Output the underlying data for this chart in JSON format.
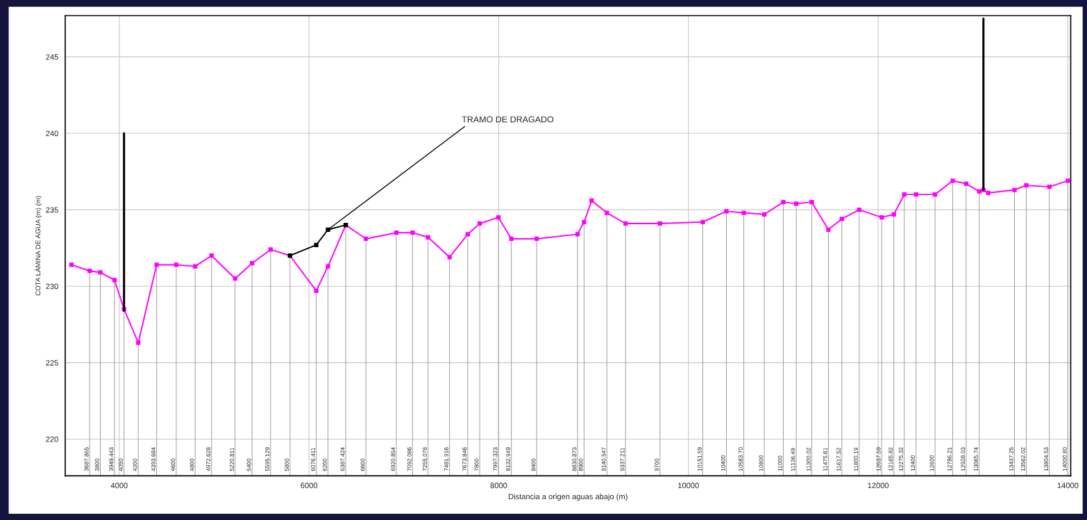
{
  "chart_data": {
    "type": "line",
    "xlabel": "Distancia a origen aguas abajo (m)",
    "ylabel": "COTA LÁMINA DE AGUA (m) (m)",
    "xlim": [
      3430,
      14030
    ],
    "xticks": [
      4000,
      6000,
      8000,
      10000,
      12000,
      14000
    ],
    "ylim": [
      217.6,
      247.7
    ],
    "yticks": [
      220,
      225,
      230,
      235,
      240,
      245
    ],
    "grid": true,
    "marker": "square",
    "line_style": "solid",
    "series": [
      {
        "color": "#ff00ff",
        "x": [
          3495,
          3687.865,
          3800,
          3949.443,
          4050,
          4200,
          4393.684,
          4600,
          4800,
          4972.628,
          5220.811,
          5400,
          5595.129,
          5800,
          6076.411,
          6200,
          6387.424,
          6600,
          6920.854,
          7092.086,
          7255.078,
          7481.916,
          7673.846,
          7800,
          7997.323,
          8132.949,
          8400,
          8830.873,
          8900,
          8980,
          9140.547,
          9337.211,
          9700,
          10151.59,
          10400,
          10583.7,
          10800,
          11000,
          11136.49,
          11300.02,
          11475.61,
          11617.52,
          11800.19,
          12037.59,
          12165.82,
          12275.32,
          12400,
          12600,
          12786.21,
          12928.03,
          13065.74,
          13110,
          13160,
          13437.25,
          13562.02,
          13804.53,
          14000.8
        ],
        "values": [
          231.4,
          231.0,
          230.9,
          230.4,
          228.5,
          226.3,
          231.4,
          231.4,
          231.3,
          232.0,
          230.5,
          231.5,
          232.4,
          232.0,
          229.7,
          231.3,
          234.0,
          233.1,
          233.5,
          233.5,
          233.2,
          231.9,
          233.4,
          234.1,
          234.5,
          233.1,
          233.1,
          233.4,
          234.2,
          235.6,
          234.8,
          234.1,
          234.1,
          234.2,
          234.9,
          234.8,
          234.7,
          235.5,
          235.4,
          235.5,
          233.7,
          234.4,
          235.0,
          234.5,
          234.7,
          236.0,
          236.0,
          236.0,
          236.9,
          236.7,
          236.2,
          236.3,
          236.1,
          236.3,
          236.6,
          236.5,
          236.9
        ]
      },
      {
        "color": "#000000",
        "x": [
          5800,
          6076.411,
          6200,
          6387.424
        ],
        "values": [
          232.0,
          232.7,
          233.7,
          234.0
        ]
      },
      {
        "color": "#000000",
        "marker": "none",
        "x": [
          4050,
          4050
        ],
        "values": [
          228.4,
          240.0
        ]
      },
      {
        "color": "#000000",
        "marker": "none",
        "x": [
          13110,
          13110
        ],
        "values": [
          236.3,
          247.5
        ]
      }
    ],
    "annotations": [
      {
        "text": "TRAMO DE DRAGADO",
        "x": 6200,
        "y": 233.7
      },
      {
        "text": "3687.865",
        "x": 3687.865,
        "y": 231.0
      },
      {
        "text": "3800",
        "x": 3800,
        "y": 230.9
      },
      {
        "text": "3949.443",
        "x": 3949.443,
        "y": 230.4
      },
      {
        "text": "4050",
        "x": 4050,
        "y": 228.5
      },
      {
        "text": "4200",
        "x": 4200,
        "y": 226.3
      },
      {
        "text": "4393.684",
        "x": 4393.684,
        "y": 231.4
      },
      {
        "text": "4600",
        "x": 4600,
        "y": 231.4
      },
      {
        "text": "4800",
        "x": 4800,
        "y": 231.3
      },
      {
        "text": "4972.628",
        "x": 4972.628,
        "y": 232.0
      },
      {
        "text": "5220.811",
        "x": 5220.811,
        "y": 230.5
      },
      {
        "text": "5400",
        "x": 5400,
        "y": 231.5
      },
      {
        "text": "5595.129",
        "x": 5595.129,
        "y": 232.4
      },
      {
        "text": "5800",
        "x": 5800,
        "y": 232.0
      },
      {
        "text": "6076.411",
        "x": 6076.411,
        "y": 229.7
      },
      {
        "text": "6200",
        "x": 6200,
        "y": 231.3
      },
      {
        "text": "6387.424",
        "x": 6387.424,
        "y": 234.0
      },
      {
        "text": "6600",
        "x": 6600,
        "y": 233.1
      },
      {
        "text": "6920.854",
        "x": 6920.854,
        "y": 233.5
      },
      {
        "text": "7092.086",
        "x": 7092.086,
        "y": 233.5
      },
      {
        "text": "7255.078",
        "x": 7255.078,
        "y": 233.2
      },
      {
        "text": "7481.916",
        "x": 7481.916,
        "y": 231.9
      },
      {
        "text": "7673.846",
        "x": 7673.846,
        "y": 233.4
      },
      {
        "text": "7800",
        "x": 7800,
        "y": 234.1
      },
      {
        "text": "7997.323",
        "x": 7997.323,
        "y": 234.5
      },
      {
        "text": "8132.949",
        "x": 8132.949,
        "y": 233.1
      },
      {
        "text": "8400",
        "x": 8400,
        "y": 233.1
      },
      {
        "text": "8830.873",
        "x": 8830.873,
        "y": 233.4
      },
      {
        "text": "8900",
        "x": 8900,
        "y": 234.2
      },
      {
        "text": "9140.547",
        "x": 9140.547,
        "y": 234.8
      },
      {
        "text": "9337.211",
        "x": 9337.211,
        "y": 234.1
      },
      {
        "text": "9700",
        "x": 9700,
        "y": 234.1
      },
      {
        "text": "10151.59",
        "x": 10151.59,
        "y": 234.2
      },
      {
        "text": "10400",
        "x": 10400,
        "y": 234.9
      },
      {
        "text": "10583.70",
        "x": 10583.7,
        "y": 234.8
      },
      {
        "text": "10800",
        "x": 10800,
        "y": 234.7
      },
      {
        "text": "11000",
        "x": 11000,
        "y": 235.5
      },
      {
        "text": "11136.49",
        "x": 11136.49,
        "y": 235.4
      },
      {
        "text": "11300.02",
        "x": 11300.02,
        "y": 235.5
      },
      {
        "text": "11475.61",
        "x": 11475.61,
        "y": 233.7
      },
      {
        "text": "11617.52",
        "x": 11617.52,
        "y": 234.4
      },
      {
        "text": "11800.19",
        "x": 11800.19,
        "y": 235.0
      },
      {
        "text": "12037.59",
        "x": 12037.59,
        "y": 234.5
      },
      {
        "text": "12165.82",
        "x": 12165.82,
        "y": 234.7
      },
      {
        "text": "12275.32",
        "x": 12275.32,
        "y": 236.0
      },
      {
        "text": "12400",
        "x": 12400,
        "y": 236.0
      },
      {
        "text": "12600",
        "x": 12600,
        "y": 236.0
      },
      {
        "text": "12786.21",
        "x": 12786.21,
        "y": 236.9
      },
      {
        "text": "12928.03",
        "x": 12928.03,
        "y": 236.7
      },
      {
        "text": "13065.74",
        "x": 13065.74,
        "y": 236.2
      },
      {
        "text": "13437.25",
        "x": 13437.25,
        "y": 236.3
      },
      {
        "text": "13562.02",
        "x": 13562.02,
        "y": 236.6
      },
      {
        "text": "13804.53",
        "x": 13804.53,
        "y": 236.5
      },
      {
        "text": "14000.80",
        "x": 14000.8,
        "y": 236.9
      }
    ]
  }
}
